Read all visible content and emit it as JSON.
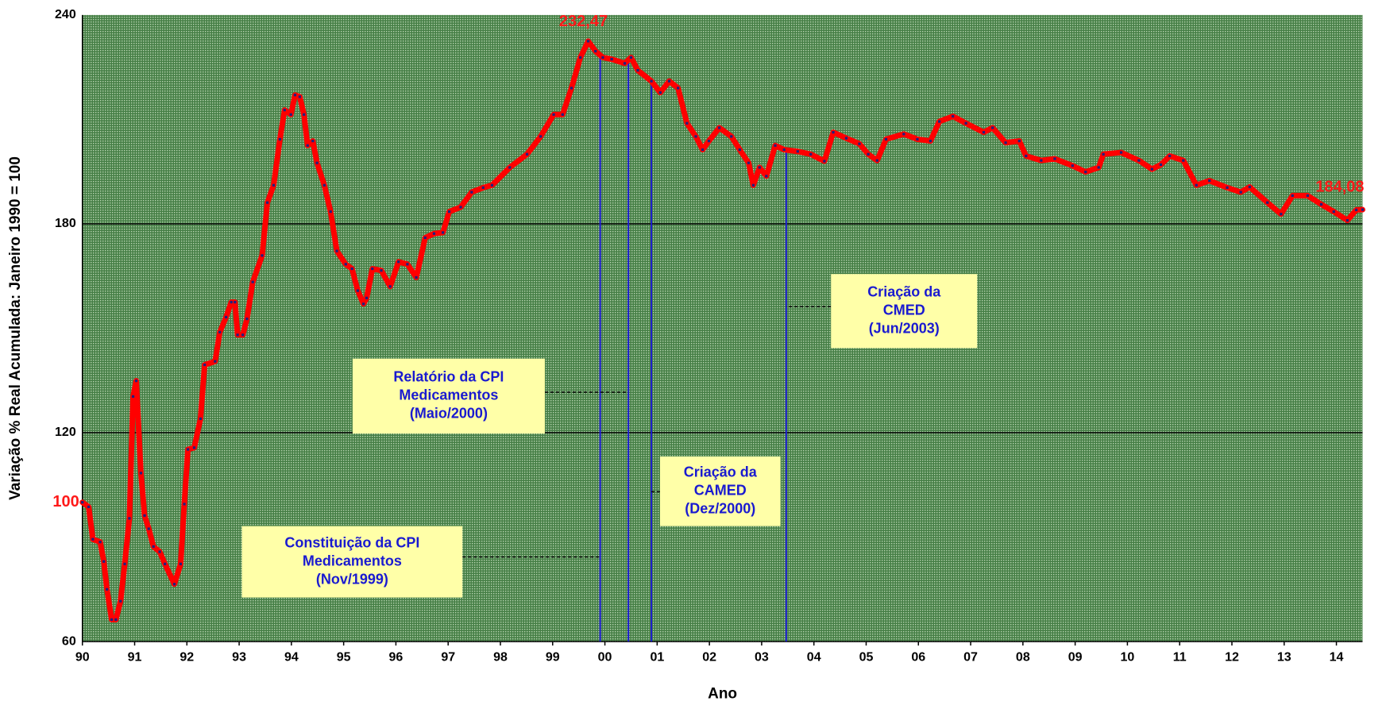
{
  "chart_data": {
    "type": "line",
    "xlabel": "Ano",
    "ylabel": "Variação % Real Acumulada: Janeiro 1990 = 100",
    "xlim": [
      1990,
      2014.5
    ],
    "ylim": [
      60,
      240
    ],
    "yticks": [
      60,
      120,
      180,
      240
    ],
    "xticks": [
      {
        "value": 1990,
        "label": "90"
      },
      {
        "value": 1991,
        "label": "91"
      },
      {
        "value": 1992,
        "label": "92"
      },
      {
        "value": 1993,
        "label": "93"
      },
      {
        "value": 1994,
        "label": "94"
      },
      {
        "value": 1995,
        "label": "95"
      },
      {
        "value": 1996,
        "label": "96"
      },
      {
        "value": 1997,
        "label": "97"
      },
      {
        "value": 1998,
        "label": "98"
      },
      {
        "value": 1999,
        "label": "99"
      },
      {
        "value": 2000,
        "label": "00"
      },
      {
        "value": 2001,
        "label": "01"
      },
      {
        "value": 2002,
        "label": "02"
      },
      {
        "value": 2003,
        "label": "03"
      },
      {
        "value": 2004,
        "label": "04"
      },
      {
        "value": 2005,
        "label": "05"
      },
      {
        "value": 2006,
        "label": "06"
      },
      {
        "value": 2007,
        "label": "07"
      },
      {
        "value": 2008,
        "label": "08"
      },
      {
        "value": 2009,
        "label": "09"
      },
      {
        "value": 2010,
        "label": "10"
      },
      {
        "value": 2011,
        "label": "11"
      },
      {
        "value": 2012,
        "label": "12"
      },
      {
        "value": 2013,
        "label": "13"
      },
      {
        "value": 2014,
        "label": "14"
      }
    ],
    "grid": true,
    "x": [
      1990.0,
      1990.12,
      1990.2,
      1990.34,
      1990.41,
      1990.47,
      1990.56,
      1990.64,
      1990.73,
      1990.81,
      1990.9,
      1990.97,
      1991.03,
      1991.12,
      1991.19,
      1991.27,
      1991.36,
      1991.48,
      1991.58,
      1991.76,
      1991.88,
      1991.95,
      1992.02,
      1992.14,
      1992.26,
      1992.34,
      1992.54,
      1992.63,
      1992.75,
      1992.85,
      1992.92,
      1992.97,
      1993.07,
      1993.15,
      1993.26,
      1993.44,
      1993.54,
      1993.66,
      1993.78,
      1993.87,
      1993.99,
      1994.07,
      1994.16,
      1994.24,
      1994.31,
      1994.41,
      1994.49,
      1994.63,
      1994.75,
      1994.87,
      1995.04,
      1995.16,
      1995.27,
      1995.38,
      1995.44,
      1995.55,
      1995.72,
      1995.89,
      1996.05,
      1996.22,
      1996.39,
      1996.56,
      1996.73,
      1996.9,
      1997.02,
      1997.24,
      1997.45,
      1997.67,
      1997.84,
      1998.18,
      1998.51,
      1998.77,
      1999.02,
      1999.19,
      1999.36,
      1999.53,
      1999.68,
      1999.82,
      1999.96,
      2000.13,
      2000.38,
      2000.5,
      2000.63,
      2000.89,
      2001.06,
      2001.23,
      2001.4,
      2001.57,
      2001.74,
      2001.87,
      2001.99,
      2002.19,
      2002.42,
      2002.58,
      2002.75,
      2002.84,
      2002.96,
      2003.09,
      2003.26,
      2003.43,
      2003.69,
      2003.94,
      2004.2,
      2004.37,
      2004.62,
      2004.87,
      2005.04,
      2005.21,
      2005.38,
      2005.72,
      2005.98,
      2006.23,
      2006.4,
      2006.66,
      2006.91,
      2007.25,
      2007.42,
      2007.67,
      2007.93,
      2008.06,
      2008.35,
      2008.61,
      2008.95,
      2009.2,
      2009.45,
      2009.54,
      2009.88,
      2010.22,
      2010.47,
      2010.64,
      2010.81,
      2011.07,
      2011.32,
      2011.57,
      2011.91,
      2012.17,
      2012.34,
      2012.68,
      2012.94,
      2013.16,
      2013.45,
      2013.71,
      2013.95,
      2014.21,
      2014.38,
      2014.5
    ],
    "series": [
      {
        "color": "#ff0000",
        "marker_color": "#202080",
        "values": [
          100,
          98.7,
          89.4,
          88.6,
          83,
          75,
          66.3,
          66.3,
          71.6,
          82.3,
          95.4,
          130.4,
          134.9,
          108.4,
          96.2,
          92.4,
          87.3,
          85.8,
          82.3,
          76.5,
          82.3,
          99.5,
          115.2,
          115.7,
          124,
          139.5,
          140.5,
          148.9,
          153.2,
          157.5,
          157.5,
          148.1,
          148.1,
          152.7,
          163.3,
          170.9,
          186.1,
          191.1,
          204.3,
          212.7,
          211.4,
          217,
          216.5,
          211.4,
          202.5,
          203.8,
          197.5,
          191.1,
          183.5,
          172.2,
          168.4,
          167.1,
          160.8,
          157,
          158.7,
          167.1,
          166.6,
          162,
          169.1,
          168.4,
          164.6,
          176,
          177.2,
          177.5,
          183.5,
          184.8,
          189.1,
          190.4,
          191.1,
          196.2,
          200,
          205.1,
          211.4,
          211.4,
          219,
          227.8,
          232.47,
          229.6,
          227.8,
          227.3,
          226.1,
          227.8,
          224.1,
          221,
          217.7,
          221,
          219,
          208.9,
          205.1,
          201.3,
          203.8,
          207.6,
          205.1,
          201.3,
          197.5,
          191.1,
          196.2,
          193.7,
          202.5,
          201.3,
          200.8,
          200,
          198,
          206.3,
          204.6,
          203,
          200,
          198.2,
          204.3,
          205.8,
          204.3,
          203.8,
          209.4,
          210.9,
          208.9,
          206.3,
          207.6,
          203.3,
          203.8,
          199.5,
          198.2,
          198.7,
          196.7,
          194.9,
          196.2,
          200,
          200.5,
          198.2,
          195.7,
          197,
          199.5,
          198.2,
          191.1,
          192.4,
          190.4,
          189.1,
          190.6,
          186.1,
          182.8,
          188.1,
          188.1,
          185.6,
          183.5,
          181,
          184,
          184.08
        ]
      }
    ],
    "point_labels": [
      {
        "label": "100",
        "value": 100,
        "x": 1990.0
      },
      {
        "label": "232,47",
        "value": 232.47,
        "x": 1999.68
      },
      {
        "label": "184,08",
        "value": 184.08,
        "x": 2014.5
      }
    ],
    "events": [
      {
        "x": 1999.91,
        "lines": [
          "Constituição da CPI",
          "Medicamentos",
          "(Nov/1999)"
        ]
      },
      {
        "x": 2000.45,
        "lines": [
          "Relatório da CPI",
          "Medicamentos",
          "(Maio/2000)"
        ]
      },
      {
        "x": 2000.89,
        "lines": [
          "Criação da",
          "CAMED",
          "(Dez/2000)"
        ]
      },
      {
        "x": 2003.47,
        "lines": [
          "Criação da",
          "CMED",
          "(Jun/2003)"
        ]
      }
    ]
  }
}
